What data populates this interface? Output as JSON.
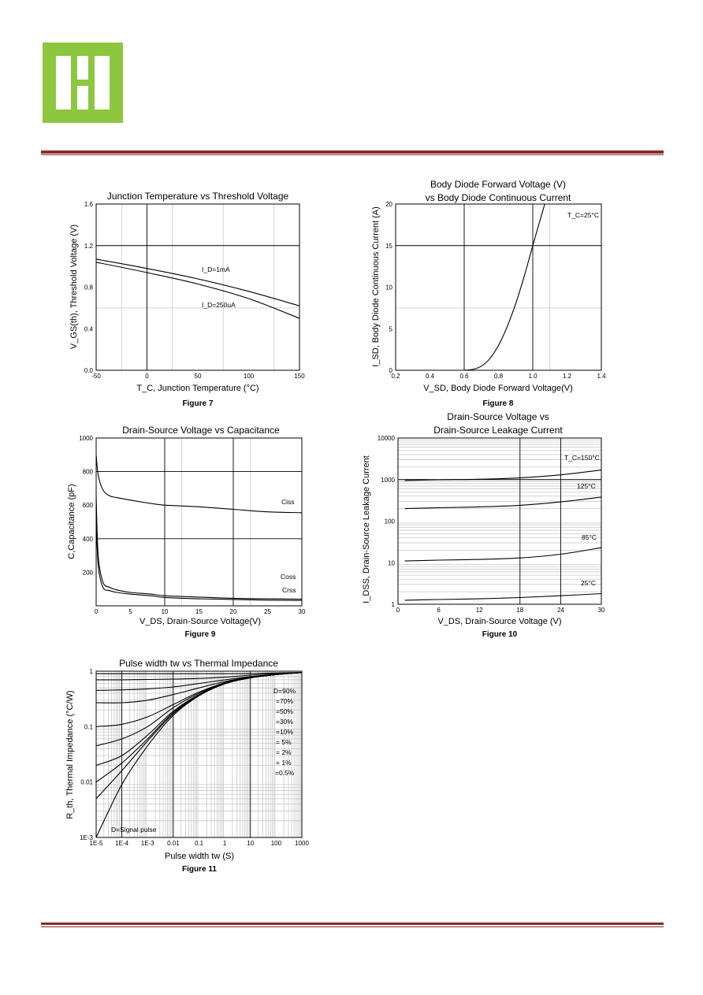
{
  "colors": {
    "logo_green": "#8dc63f",
    "rule": "#8a2a2a",
    "major_grid": "#000000",
    "minor_grid": "#c8c8c8",
    "curve": "#000000"
  },
  "charts": [
    {
      "title_lines": [
        "Junction Temperature vs Threshold Voltage"
      ],
      "figure_label": "Figure 7",
      "ylabel": "V_GS(th), Threshold Voltage (V)",
      "xlabel": "T_C, Junction Temperature (°C)",
      "x_ticks": [
        "-50",
        "0",
        "50",
        "100",
        "150"
      ],
      "y_ticks": [
        "0.0",
        "0.4",
        "0.8",
        "1.2",
        "1.6"
      ],
      "annotations": [
        "I_D=1mA",
        "I_D=250uA"
      ]
    },
    {
      "title_lines": [
        "Body Diode Forward Voltage (V)",
        "vs Body Diode Continuous Current"
      ],
      "figure_label": "Figure 8",
      "ylabel": "I_SD, Body Diode Continuous Current (A)",
      "xlabel": "V_SD, Body Diode Forward Voltage(V)",
      "x_ticks": [
        "0.2",
        "0.4",
        "0.6",
        "0.8",
        "1.0",
        "1.2",
        "1.4"
      ],
      "y_ticks": [
        "0",
        "5",
        "10",
        "15",
        "20"
      ],
      "annotations": [
        "T_C=25°C"
      ]
    },
    {
      "title_lines": [
        "Drain-Source Voltage vs Capacitance"
      ],
      "figure_label": "Figure 9",
      "ylabel": "C,Capacitance (pF)",
      "xlabel": "V_DS, Drain-Source Voltage(V)",
      "x_ticks": [
        "0",
        "5",
        "10",
        "15",
        "20",
        "25",
        "30"
      ],
      "y_ticks": [
        "",
        "200",
        "400",
        "600",
        "800",
        "1000"
      ],
      "annotations": [
        "Ciss",
        "Coss",
        "Crss"
      ]
    },
    {
      "title_lines": [
        "Drain-Source Voltage vs",
        "Drain-Source Leakage Current"
      ],
      "figure_label": "Figure 10",
      "ylabel": "I_DSS, Drain-Source Leakage Current",
      "xlabel": "V_DS, Drain-Source Voltage (V)",
      "x_ticks": [
        "0",
        "6",
        "12",
        "18",
        "24",
        "30"
      ],
      "y_ticks": [
        "1",
        "10",
        "100",
        "1000",
        "10000"
      ],
      "annotations": [
        "T_C=150°C",
        "125°C",
        "85°C",
        "25°C"
      ]
    },
    {
      "title_lines": [
        "Pulse width tw vs Thermal Impedance"
      ],
      "figure_label": "Figure 11",
      "ylabel": "R_th, Thermal Impedance (°C/W)",
      "xlabel": "Pulse width tw (S)",
      "x_ticks": [
        "1E-5",
        "1E-4",
        "1E-3",
        "0.01",
        "0.1",
        "1",
        "10",
        "100",
        "1000"
      ],
      "y_ticks": [
        "1E-3",
        "0.01",
        "0.1",
        "1"
      ],
      "annotations": [
        "D=90%",
        "=70%",
        "=50%",
        "=30%",
        "=10%",
        "= 5%",
        "= 2%",
        "= 1%",
        "=0.5%",
        "D=Signal pulse"
      ]
    }
  ],
  "chart_data": [
    {
      "type": "line",
      "title": "Junction Temperature vs Threshold Voltage",
      "xlabel": "T_C, Junction Temperature (°C)",
      "ylabel": "V_GS(th), Threshold Voltage (V)",
      "xlim": [
        -50,
        150
      ],
      "ylim": [
        0.0,
        1.6
      ],
      "x": [
        -50,
        0,
        50,
        100,
        150
      ],
      "series": [
        {
          "name": "I_D=1mA",
          "values": [
            1.07,
            0.98,
            0.88,
            0.76,
            0.62
          ]
        },
        {
          "name": "I_D=250uA",
          "values": [
            1.04,
            0.94,
            0.83,
            0.69,
            0.5
          ]
        }
      ]
    },
    {
      "type": "line",
      "title": "Body Diode Forward Voltage (V) vs Body Diode Continuous Current",
      "xlabel": "V_SD, Body Diode Forward Voltage(V)",
      "ylabel": "I_SD, Body Diode Continuous Current (A)",
      "xlim": [
        0.2,
        1.4
      ],
      "ylim": [
        0,
        20
      ],
      "x": [
        0.6,
        0.65,
        0.7,
        0.75,
        0.8,
        0.85,
        0.9,
        0.95,
        1.0,
        1.05,
        1.07
      ],
      "series": [
        {
          "name": "T_C=25°C",
          "values": [
            0,
            0.1,
            0.5,
            1.4,
            3.0,
            5.2,
            8.0,
            11.3,
            15.0,
            18.6,
            20.0
          ]
        }
      ]
    },
    {
      "type": "line",
      "title": "Drain-Source Voltage vs Capacitance",
      "xlabel": "V_DS, Drain-Source Voltage(V)",
      "ylabel": "C,Capacitance (pF)",
      "xlim": [
        0,
        30
      ],
      "ylim": [
        0,
        1000
      ],
      "x": [
        0,
        0.3,
        1,
        2,
        3,
        5,
        8,
        10,
        15,
        20,
        25,
        30
      ],
      "series": [
        {
          "name": "Ciss",
          "values": [
            900,
            780,
            690,
            655,
            645,
            630,
            610,
            600,
            590,
            575,
            560,
            555
          ]
        },
        {
          "name": "Coss",
          "values": [
            660,
            300,
            140,
            110,
            95,
            80,
            70,
            60,
            52,
            45,
            42,
            40
          ]
        },
        {
          "name": "Crss",
          "values": [
            520,
            240,
            110,
            90,
            80,
            70,
            60,
            50,
            42,
            38,
            34,
            32
          ]
        }
      ]
    },
    {
      "type": "line",
      "title": "Drain-Source Voltage vs Drain-Source Leakage Current",
      "xlabel": "V_DS, Drain-Source Voltage (V)",
      "ylabel": "I_DSS, Drain-Source Leakage Current",
      "log_y": true,
      "xlim": [
        0,
        30
      ],
      "ylim": [
        1,
        10000
      ],
      "x": [
        1,
        6,
        12,
        18,
        24,
        30
      ],
      "series": [
        {
          "name": "T_C=150°C",
          "values": [
            950,
            990,
            1020,
            1100,
            1300,
            1700
          ]
        },
        {
          "name": "125°C",
          "values": [
            200,
            210,
            220,
            240,
            290,
            380
          ]
        },
        {
          "name": "85°C",
          "values": [
            11,
            11.5,
            12,
            13,
            16,
            23
          ]
        },
        {
          "name": "25°C",
          "values": [
            1.25,
            1.3,
            1.35,
            1.45,
            1.6,
            1.8
          ]
        }
      ]
    },
    {
      "type": "line",
      "title": "Pulse width tw vs Thermal Impedance",
      "xlabel": "Pulse width tw (S)",
      "ylabel": "R_th, Thermal Impedance (°C/W)",
      "log_x": true,
      "log_y": true,
      "xlim": [
        1e-05,
        1000
      ],
      "ylim": [
        0.001,
        1
      ],
      "x": [
        1e-05,
        0.0001,
        0.001,
        0.01,
        0.1,
        1,
        10,
        100,
        1000
      ],
      "series": [
        {
          "name": "D=90%",
          "values": [
            0.9,
            0.9,
            0.9,
            0.9,
            0.9,
            0.9,
            0.91,
            0.93,
            0.95
          ]
        },
        {
          "name": "=70%",
          "values": [
            0.7,
            0.7,
            0.71,
            0.72,
            0.74,
            0.78,
            0.85,
            0.9,
            0.95
          ]
        },
        {
          "name": "=50%",
          "values": [
            0.45,
            0.46,
            0.48,
            0.52,
            0.6,
            0.7,
            0.8,
            0.88,
            0.95
          ]
        },
        {
          "name": "=30%",
          "values": [
            0.27,
            0.27,
            0.3,
            0.38,
            0.5,
            0.65,
            0.78,
            0.87,
            0.95
          ]
        },
        {
          "name": "=10%",
          "values": [
            0.1,
            0.11,
            0.15,
            0.25,
            0.42,
            0.62,
            0.77,
            0.87,
            0.95
          ]
        },
        {
          "name": "= 5%",
          "values": [
            0.045,
            0.06,
            0.1,
            0.22,
            0.4,
            0.61,
            0.77,
            0.87,
            0.95
          ]
        },
        {
          "name": "= 2%",
          "values": [
            0.02,
            0.03,
            0.07,
            0.19,
            0.38,
            0.6,
            0.76,
            0.87,
            0.95
          ]
        },
        {
          "name": "= 1%",
          "values": [
            0.01,
            0.022,
            0.06,
            0.18,
            0.37,
            0.6,
            0.76,
            0.87,
            0.95
          ]
        },
        {
          "name": "=0.5%",
          "values": [
            0.005,
            0.016,
            0.055,
            0.17,
            0.37,
            0.6,
            0.76,
            0.87,
            0.95
          ]
        },
        {
          "name": "D=Signal pulse",
          "values": [
            0.001,
            0.009,
            0.045,
            0.16,
            0.36,
            0.59,
            0.76,
            0.87,
            0.95
          ]
        }
      ]
    }
  ]
}
